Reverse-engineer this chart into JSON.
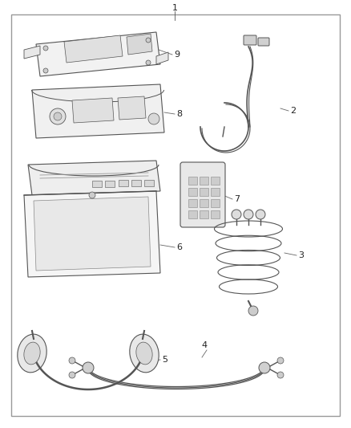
{
  "fig_width": 4.38,
  "fig_height": 5.33,
  "dpi": 100,
  "border_color": "#999999",
  "border_linewidth": 1.0,
  "background_color": "#ffffff",
  "line_color": "#555555",
  "label_color": "#222222",
  "leader_color": "#666666"
}
